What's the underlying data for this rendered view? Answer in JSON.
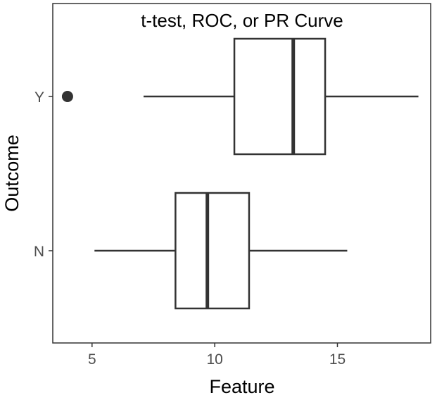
{
  "chart_data": {
    "type": "boxplot",
    "title": "t-test, ROC, or PR Curve",
    "xlabel": "Feature",
    "ylabel": "Outcome",
    "xlim": [
      3.4,
      18.8
    ],
    "x_ticks": [
      5,
      10,
      15
    ],
    "categories": [
      "Y",
      "N"
    ],
    "boxes": [
      {
        "category": "Y",
        "whisker_low": 7.1,
        "q1": 10.8,
        "median": 13.2,
        "q3": 14.5,
        "whisker_high": 18.3,
        "outliers": [
          4.0
        ]
      },
      {
        "category": "N",
        "whisker_low": 5.1,
        "q1": 8.4,
        "median": 9.7,
        "q3": 11.4,
        "whisker_high": 15.4,
        "outliers": []
      }
    ],
    "grid": false,
    "colors": {
      "box_line": "#333333",
      "panel_border": "#333333",
      "outlier": "#333333",
      "tick_text": "#4d4d4d"
    }
  }
}
